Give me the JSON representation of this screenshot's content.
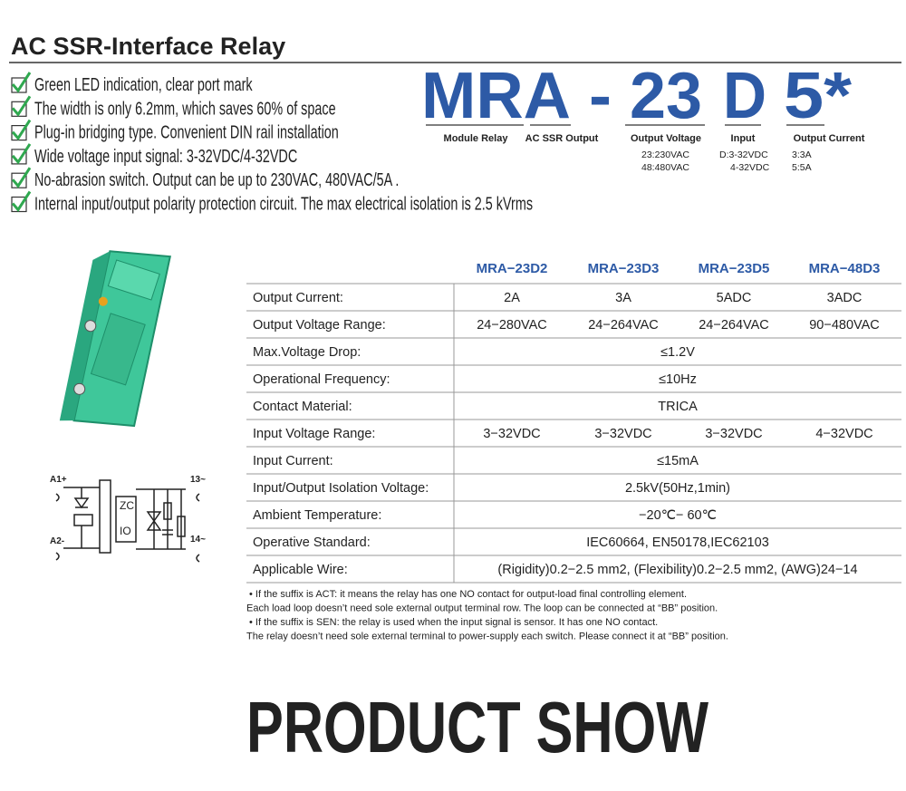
{
  "header": {
    "title": "AC SSR-Interface Relay"
  },
  "features": [
    "Green LED indication, clear port mark",
    "The width is only 6.2mm, which saves 60% of space",
    "Plug-in bridging type. Convenient DIN rail installation",
    "Wide voltage input signal: 3-32VDC/4-32VDC",
    "No-abrasion switch. Output can be up to 230VAC, 480VAC/5A .",
    "Internal input/output polarity protection circuit. The max electrical isolation is 2.5 kVrms"
  ],
  "model_code": {
    "parts": [
      {
        "code": "MRA",
        "labels": [
          "Module Relay",
          "AC SSR Output"
        ]
      },
      {
        "code": "-"
      },
      {
        "code": "23",
        "labels": [
          "Output Voltage"
        ],
        "options": [
          "23:230VAC",
          "48:480VAC"
        ]
      },
      {
        "code": "D",
        "labels": [
          "Input"
        ],
        "options": [
          "D:3-32VDC",
          "4-32VDC"
        ]
      },
      {
        "code": "5*",
        "labels": [
          "Output Current"
        ],
        "options": [
          "3:3A",
          "5:5A"
        ]
      }
    ]
  },
  "circuit": {
    "labels": [
      "A1+",
      "A2-",
      "13~",
      "14~",
      "ZC",
      "IO"
    ]
  },
  "table": {
    "columns": [
      "MRA−23D2",
      "MRA−23D3",
      "MRA−23D5",
      "MRA−48D3"
    ],
    "rows": [
      [
        "Output Current:",
        "2A",
        "3A",
        "5ADC",
        "3ADC"
      ],
      [
        "Output Voltage Range:",
        "24−280VAC",
        "24−264VAC",
        "24−264VAC",
        "90−480VAC"
      ],
      [
        "Max.Voltage Drop:",
        "≤1.2V"
      ],
      [
        "Operational Frequency:",
        "≤10Hz"
      ],
      [
        "Contact Material:",
        "TRICA"
      ],
      [
        "Input Voltage Range:",
        "3−32VDC",
        "3−32VDC",
        "3−32VDC",
        "4−32VDC"
      ],
      [
        "Input Current:",
        "≤15mA"
      ],
      [
        "Input/Output Isolation Voltage:",
        "2.5kV(50Hz,1min)"
      ],
      [
        "Ambient Temperature:",
        "−20℃− 60℃"
      ],
      [
        "Operative Standard:",
        "IEC60664, EN50178,IEC62103"
      ],
      [
        "Applicable Wire:",
        "(Rigidity)0.2−2.5 mm2, (Flexibility)0.2−2.5 mm2, (AWG)24−14"
      ]
    ]
  },
  "notes": [
    "• If the suffix is ACT: it means the relay has one NO contact for output-load final controlling element.",
    "Each load loop doesn’t need sole external output terminal row. The loop can be connected at “BB” position.",
    "• If the suffix is SEN: the relay is used when the input signal is sensor. It has one NO contact.",
    "The relay doesn’t need sole external terminal to power-supply each switch. Please connect it at “BB” position."
  ],
  "section": {
    "title": "PRODUCT SHOW"
  }
}
